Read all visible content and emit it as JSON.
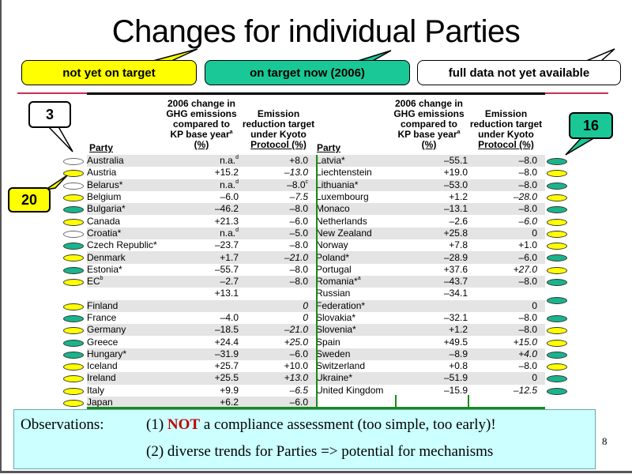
{
  "slide": {
    "title": "Changes for individual Parties",
    "page_number": "8"
  },
  "legend": {
    "yellow": {
      "label": "not yet on target",
      "color": "#ffff00"
    },
    "green": {
      "label": "on target now (2006)",
      "color": "#19c896"
    },
    "white": {
      "label": "full data not yet available",
      "color": "#ffffff"
    }
  },
  "callouts": {
    "white_count": "3",
    "yellow_count": "20",
    "green_count": "16"
  },
  "table": {
    "headers": {
      "party": "Party",
      "change": [
        "2006 change in",
        "GHG emissions",
        "compared to",
        "KP base year",
        "(%)"
      ],
      "change_sup": "a",
      "target": [
        "Emission",
        "reduction target",
        "under Kyoto",
        "Protocol (%)"
      ]
    },
    "left_rows": [
      {
        "party": "Australia",
        "sup": "",
        "change": "n.a.",
        "change_sup": "d",
        "target": "+8.0",
        "target_sup": "",
        "italic": false,
        "status": "w"
      },
      {
        "party": "Austria",
        "sup": "",
        "change": "+15.2",
        "change_sup": "",
        "target": "–13.0",
        "target_sup": "",
        "italic": true,
        "status": "y"
      },
      {
        "party": "Belarus*",
        "sup": "",
        "change": "n.a.",
        "change_sup": "d",
        "target": "–8.0",
        "target_sup": "c",
        "italic": false,
        "status": "w"
      },
      {
        "party": "Belgium",
        "sup": "",
        "change": "–6.0",
        "change_sup": "",
        "target": "–7.5",
        "target_sup": "",
        "italic": true,
        "status": "y"
      },
      {
        "party": "Bulgaria*",
        "sup": "",
        "change": "–46.2",
        "change_sup": "",
        "target": "–8.0",
        "target_sup": "",
        "italic": false,
        "status": "g"
      },
      {
        "party": "Canada",
        "sup": "",
        "change": "+21.3",
        "change_sup": "",
        "target": "–6.0",
        "target_sup": "",
        "italic": false,
        "status": "y"
      },
      {
        "party": "Croatia*",
        "sup": "",
        "change": "n.a.",
        "change_sup": "d",
        "target": "–5.0",
        "target_sup": "",
        "italic": false,
        "status": "w"
      },
      {
        "party": "Czech Republic*",
        "sup": "",
        "change": "–23.7",
        "change_sup": "",
        "target": "–8.0",
        "target_sup": "",
        "italic": false,
        "status": "g"
      },
      {
        "party": "Denmark",
        "sup": "",
        "change": "+1.7",
        "change_sup": "",
        "target": "–21.0",
        "target_sup": "",
        "italic": true,
        "status": "y"
      },
      {
        "party": "Estonia*",
        "sup": "",
        "change": "–55.7",
        "change_sup": "",
        "target": "–8.0",
        "target_sup": "",
        "italic": false,
        "status": "g"
      },
      {
        "party": "EC",
        "sup": "b",
        "change": "–2.7",
        "change_sup": "",
        "target": "–8.0",
        "target_sup": "",
        "italic": false,
        "status": "y"
      },
      {
        "party": "",
        "sup": "",
        "change": "+13.1",
        "change_sup": "",
        "target": "",
        "target_sup": "",
        "italic": false,
        "status": ""
      },
      {
        "party": "Finland",
        "sup": "",
        "change": "",
        "change_sup": "",
        "target": "0",
        "target_sup": "",
        "italic": true,
        "status": "y"
      },
      {
        "party": "France",
        "sup": "",
        "change": "–4.0",
        "change_sup": "",
        "target": "0",
        "target_sup": "",
        "italic": true,
        "status": "g"
      },
      {
        "party": "Germany",
        "sup": "",
        "change": "–18.5",
        "change_sup": "",
        "target": "–21.0",
        "target_sup": "",
        "italic": true,
        "status": "y"
      },
      {
        "party": "Greece",
        "sup": "",
        "change": "+24.4",
        "change_sup": "",
        "target": "+25.0",
        "target_sup": "",
        "italic": true,
        "status": "g"
      },
      {
        "party": "Hungary*",
        "sup": "",
        "change": "–31.9",
        "change_sup": "",
        "target": "–6.0",
        "target_sup": "",
        "italic": false,
        "status": "g"
      },
      {
        "party": "Iceland",
        "sup": "",
        "change": "+25.7",
        "change_sup": "",
        "target": "+10.0",
        "target_sup": "",
        "italic": false,
        "status": "y"
      },
      {
        "party": "Ireland",
        "sup": "",
        "change": "+25.5",
        "change_sup": "",
        "target": "+13.0",
        "target_sup": "",
        "italic": true,
        "status": "y"
      },
      {
        "party": "Italy",
        "sup": "",
        "change": "+9.9",
        "change_sup": "",
        "target": "–6.5",
        "target_sup": "",
        "italic": true,
        "status": "y"
      },
      {
        "party": "Japan",
        "sup": "",
        "change": "+6.2",
        "change_sup": "",
        "target": "–6.0",
        "target_sup": "",
        "italic": false,
        "status": "y"
      }
    ],
    "right_rows": [
      {
        "party": "Latvia*",
        "sup": "",
        "change": "–55.1",
        "target": "–8.0",
        "italic": false,
        "status": "g"
      },
      {
        "party": "Liechtenstein",
        "sup": "",
        "change": "+19.0",
        "target": "–8.0",
        "italic": false,
        "status": "y"
      },
      {
        "party": "Lithuania*",
        "sup": "",
        "change": "–53.0",
        "target": "–8.0",
        "italic": false,
        "status": "g"
      },
      {
        "party": "Luxembourg",
        "sup": "",
        "change": "+1.2",
        "target": "–28.0",
        "italic": true,
        "status": "y"
      },
      {
        "party": "Monaco",
        "sup": "",
        "change": "–13.1",
        "target": "–8.0",
        "italic": false,
        "status": "g"
      },
      {
        "party": "Netherlands",
        "sup": "",
        "change": "–2.6",
        "target": "–6.0",
        "italic": true,
        "status": "y"
      },
      {
        "party": "New Zealand",
        "sup": "",
        "change": "+25.8",
        "target": "0",
        "italic": false,
        "status": "y"
      },
      {
        "party": "Norway",
        "sup": "",
        "change": "+7.8",
        "target": "+1.0",
        "italic": false,
        "status": "y"
      },
      {
        "party": "Poland*",
        "sup": "",
        "change": "–28.9",
        "target": "–6.0",
        "italic": false,
        "status": "g"
      },
      {
        "party": "Portugal",
        "sup": "",
        "change": "+37.6",
        "target": "+27.0",
        "italic": true,
        "status": "y"
      },
      {
        "party": "Romania*",
        "sup": "a",
        "change": "–43.7",
        "target": "–8.0",
        "italic": false,
        "status": "g"
      },
      {
        "party": "Russian",
        "sup": "",
        "change": "–34.1",
        "target": "",
        "italic": false,
        "status": ""
      },
      {
        "party": "Federation*",
        "sup": "",
        "change": "",
        "target": "0",
        "italic": false,
        "status": "g"
      },
      {
        "party": "Slovakia*",
        "sup": "",
        "change": "–32.1",
        "target": "–8.0",
        "italic": false,
        "status": "g"
      },
      {
        "party": "Slovenia*",
        "sup": "",
        "change": "+1.2",
        "target": "–8.0",
        "italic": false,
        "status": "y"
      },
      {
        "party": "Spain",
        "sup": "",
        "change": "+49.5",
        "target": "+15.0",
        "italic": true,
        "status": "y"
      },
      {
        "party": "Sweden",
        "sup": "",
        "change": "–8.9",
        "target": "+4.0",
        "italic": true,
        "status": "g"
      },
      {
        "party": "Switzerland",
        "sup": "",
        "change": "+0.8",
        "target": "–8.0",
        "italic": false,
        "status": "y"
      },
      {
        "party": "Ukraine*",
        "sup": "",
        "change": "–51.9",
        "target": "0",
        "italic": false,
        "status": "g"
      },
      {
        "party": "United Kingdom",
        "sup": "",
        "change": "–15.9",
        "target": "–12.5",
        "italic": true,
        "status": "g"
      }
    ]
  },
  "observations": {
    "label": "Observations:",
    "line1_prefix": "(1) ",
    "line1_emphasis": "NOT",
    "line1_suffix": " a compliance assessment (too simple, too early)!",
    "line2": "(2) diverse trends for Parties => potential for mechanisms"
  }
}
